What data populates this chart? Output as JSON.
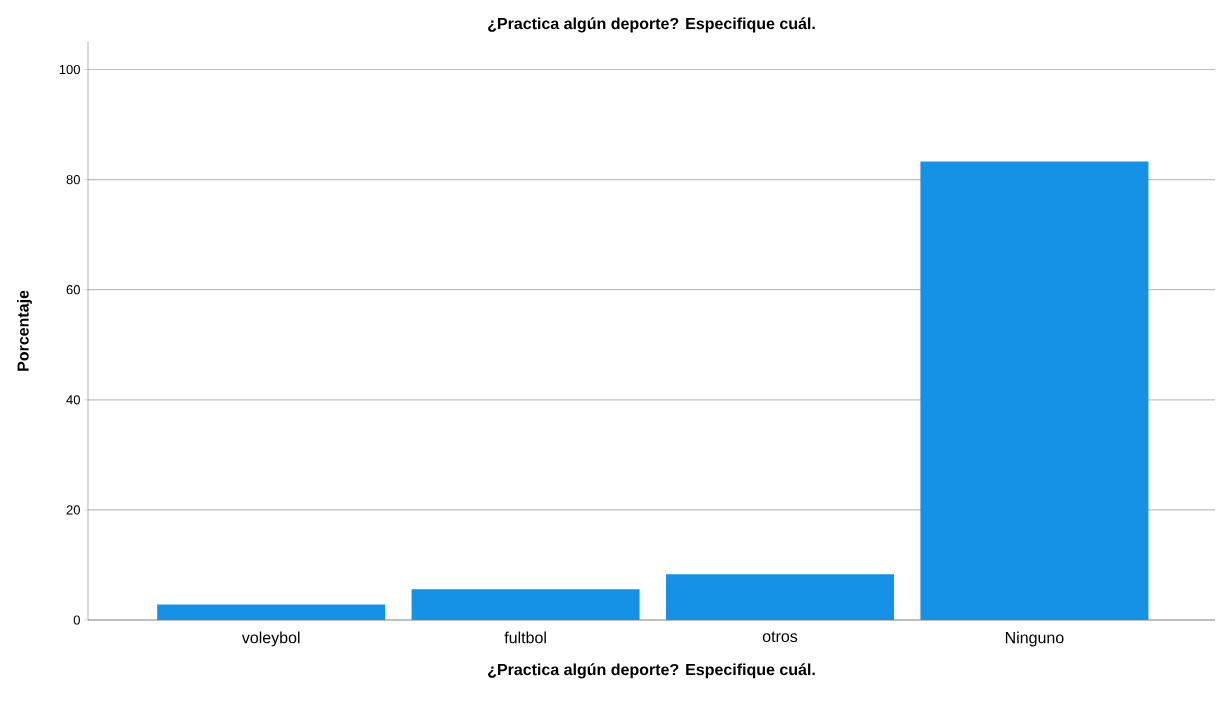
{
  "chart_data": {
    "type": "bar",
    "title": "¿Practica algún deporte? Especifique cuál.",
    "xlabel": "¿Practica algún deporte? Especifique cuál.",
    "ylabel": "Porcentaje",
    "categories": [
      "voleybol",
      "fultbol",
      "otros",
      "Ninguno"
    ],
    "values": [
      2.8,
      5.6,
      8.3,
      83.3
    ],
    "color": "#1591e6",
    "ylim": [
      0,
      105
    ],
    "yticks": [
      0,
      20,
      40,
      60,
      80,
      100
    ],
    "grid": "y"
  }
}
